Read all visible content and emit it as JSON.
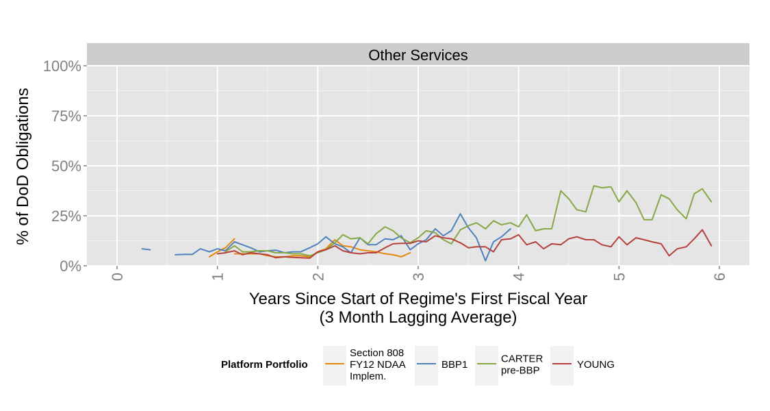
{
  "chart_data": {
    "type": "line",
    "panel_title": "Other Services",
    "xlabel": "Years Since Start of Regime's First Fiscal Year",
    "xlabel_sub": "(3 Month Lagging Average)",
    "ylabel": "% of DoD Obligations",
    "xlim": [
      -0.3,
      6.3
    ],
    "ylim": [
      0,
      1
    ],
    "x_ticks": [
      0,
      1,
      2,
      3,
      4,
      5,
      6
    ],
    "x_tick_labels": [
      "0",
      "1",
      "2",
      "3",
      "4",
      "5",
      "6"
    ],
    "y_ticks": [
      0,
      0.25,
      0.5,
      0.75,
      1.0
    ],
    "y_tick_labels": [
      "0%",
      "25%",
      "50%",
      "75%",
      "100%"
    ],
    "grid": true,
    "legend_placement": "bottom",
    "legend_title": "Platform Portfolio",
    "series": [
      {
        "name": "Section 808\nFY12 NDAA\nImplem.",
        "color": "#e5870e",
        "segments": [
          [
            [
              0.92,
              0.045
            ],
            [
              1.0,
              0.07
            ],
            [
              1.08,
              0.09
            ],
            [
              1.17,
              0.135
            ]
          ],
          [
            [
              1.17,
              0.06
            ],
            [
              1.25,
              0.06
            ],
            [
              1.33,
              0.06
            ],
            [
              1.42,
              0.06
            ],
            [
              1.5,
              0.05
            ],
            [
              1.58,
              0.045
            ],
            [
              1.67,
              0.045
            ],
            [
              1.75,
              0.05
            ],
            [
              1.83,
              0.05
            ],
            [
              1.92,
              0.045
            ],
            [
              2.0,
              0.07
            ],
            [
              2.08,
              0.085
            ],
            [
              2.17,
              0.13
            ],
            [
              2.25,
              0.1
            ],
            [
              2.33,
              0.095
            ],
            [
              2.42,
              0.08
            ],
            [
              2.5,
              0.075
            ],
            [
              2.58,
              0.07
            ],
            [
              2.67,
              0.06
            ],
            [
              2.75,
              0.055
            ],
            [
              2.83,
              0.045
            ],
            [
              2.92,
              0.065
            ]
          ]
        ]
      },
      {
        "name": "BBP1",
        "color": "#4e81bd",
        "segments": [
          [
            [
              0.25,
              0.085
            ],
            [
              0.33,
              0.08
            ]
          ],
          [
            [
              0.58,
              0.055
            ],
            [
              0.67,
              0.057
            ],
            [
              0.75,
              0.057
            ],
            [
              0.83,
              0.085
            ],
            [
              0.92,
              0.07
            ],
            [
              1.0,
              0.085
            ],
            [
              1.08,
              0.075
            ],
            [
              1.17,
              0.12
            ],
            [
              1.25,
              0.105
            ],
            [
              1.33,
              0.09
            ],
            [
              1.42,
              0.07
            ],
            [
              1.5,
              0.075
            ],
            [
              1.58,
              0.078
            ],
            [
              1.67,
              0.065
            ],
            [
              1.75,
              0.07
            ],
            [
              1.83,
              0.07
            ],
            [
              1.92,
              0.09
            ],
            [
              2.0,
              0.11
            ],
            [
              2.08,
              0.145
            ],
            [
              2.17,
              0.11
            ],
            [
              2.25,
              0.095
            ],
            [
              2.33,
              0.065
            ],
            [
              2.42,
              0.14
            ],
            [
              2.5,
              0.105
            ],
            [
              2.58,
              0.105
            ],
            [
              2.67,
              0.135
            ],
            [
              2.75,
              0.13
            ],
            [
              2.83,
              0.15
            ],
            [
              2.92,
              0.08
            ],
            [
              3.0,
              0.11
            ],
            [
              3.08,
              0.13
            ],
            [
              3.17,
              0.185
            ],
            [
              3.25,
              0.15
            ],
            [
              3.33,
              0.175
            ],
            [
              3.42,
              0.26
            ],
            [
              3.5,
              0.19
            ],
            [
              3.58,
              0.14
            ],
            [
              3.67,
              0.025
            ],
            [
              3.75,
              0.12
            ],
            [
              3.83,
              0.145
            ],
            [
              3.92,
              0.185
            ]
          ]
        ]
      },
      {
        "name": "CARTER\npre-BBP",
        "color": "#85a745",
        "segments": [
          [
            [
              1.08,
              0.07
            ],
            [
              1.17,
              0.1
            ],
            [
              1.25,
              0.07
            ],
            [
              1.33,
              0.07
            ],
            [
              1.42,
              0.075
            ],
            [
              1.5,
              0.075
            ],
            [
              1.58,
              0.065
            ],
            [
              1.67,
              0.065
            ],
            [
              1.75,
              0.06
            ],
            [
              1.83,
              0.06
            ],
            [
              1.92,
              0.05
            ],
            [
              2.0,
              0.065
            ],
            [
              2.08,
              0.08
            ],
            [
              2.17,
              0.115
            ],
            [
              2.25,
              0.155
            ],
            [
              2.33,
              0.135
            ],
            [
              2.42,
              0.14
            ],
            [
              2.5,
              0.11
            ],
            [
              2.58,
              0.16
            ],
            [
              2.67,
              0.195
            ],
            [
              2.75,
              0.175
            ],
            [
              2.83,
              0.14
            ],
            [
              2.92,
              0.115
            ],
            [
              3.0,
              0.14
            ],
            [
              3.08,
              0.175
            ],
            [
              3.17,
              0.165
            ],
            [
              3.25,
              0.13
            ],
            [
              3.33,
              0.11
            ],
            [
              3.42,
              0.18
            ],
            [
              3.5,
              0.2
            ],
            [
              3.58,
              0.215
            ],
            [
              3.67,
              0.185
            ],
            [
              3.75,
              0.225
            ],
            [
              3.83,
              0.205
            ],
            [
              3.92,
              0.215
            ],
            [
              4.0,
              0.195
            ],
            [
              4.08,
              0.255
            ],
            [
              4.17,
              0.175
            ],
            [
              4.25,
              0.185
            ],
            [
              4.33,
              0.185
            ],
            [
              4.42,
              0.375
            ],
            [
              4.5,
              0.335
            ],
            [
              4.58,
              0.28
            ],
            [
              4.67,
              0.27
            ],
            [
              4.75,
              0.4
            ],
            [
              4.83,
              0.39
            ],
            [
              4.92,
              0.395
            ],
            [
              5.0,
              0.32
            ],
            [
              5.08,
              0.375
            ],
            [
              5.17,
              0.315
            ],
            [
              5.25,
              0.23
            ],
            [
              5.33,
              0.23
            ],
            [
              5.42,
              0.355
            ],
            [
              5.5,
              0.335
            ],
            [
              5.58,
              0.28
            ],
            [
              5.67,
              0.235
            ],
            [
              5.75,
              0.36
            ],
            [
              5.83,
              0.385
            ],
            [
              5.92,
              0.32
            ]
          ]
        ]
      },
      {
        "name": "YOUNG",
        "color": "#b4413b",
        "segments": [
          [
            [
              1.0,
              0.06
            ],
            [
              1.08,
              0.065
            ],
            [
              1.17,
              0.075
            ],
            [
              1.25,
              0.055
            ],
            [
              1.33,
              0.065
            ],
            [
              1.42,
              0.06
            ],
            [
              1.5,
              0.055
            ],
            [
              1.58,
              0.04
            ],
            [
              1.67,
              0.045
            ],
            [
              1.75,
              0.042
            ],
            [
              1.83,
              0.04
            ],
            [
              1.92,
              0.038
            ],
            [
              2.0,
              0.07
            ],
            [
              2.08,
              0.08
            ],
            [
              2.17,
              0.1
            ],
            [
              2.25,
              0.075
            ],
            [
              2.33,
              0.065
            ],
            [
              2.42,
              0.06
            ],
            [
              2.5,
              0.065
            ],
            [
              2.58,
              0.065
            ],
            [
              2.67,
              0.09
            ],
            [
              2.75,
              0.11
            ],
            [
              2.83,
              0.112
            ],
            [
              2.92,
              0.112
            ],
            [
              3.0,
              0.125
            ],
            [
              3.08,
              0.12
            ],
            [
              3.17,
              0.15
            ],
            [
              3.25,
              0.14
            ],
            [
              3.33,
              0.135
            ],
            [
              3.42,
              0.115
            ],
            [
              3.5,
              0.09
            ],
            [
              3.58,
              0.095
            ],
            [
              3.67,
              0.095
            ],
            [
              3.75,
              0.07
            ],
            [
              3.83,
              0.13
            ],
            [
              3.92,
              0.135
            ],
            [
              4.0,
              0.155
            ],
            [
              4.08,
              0.105
            ],
            [
              4.17,
              0.12
            ],
            [
              4.25,
              0.085
            ],
            [
              4.33,
              0.11
            ],
            [
              4.42,
              0.105
            ],
            [
              4.5,
              0.135
            ],
            [
              4.58,
              0.145
            ],
            [
              4.67,
              0.13
            ],
            [
              4.75,
              0.13
            ],
            [
              4.83,
              0.105
            ],
            [
              4.92,
              0.095
            ],
            [
              5.0,
              0.145
            ],
            [
              5.08,
              0.105
            ],
            [
              5.17,
              0.14
            ],
            [
              5.25,
              0.13
            ],
            [
              5.33,
              0.12
            ],
            [
              5.42,
              0.11
            ],
            [
              5.5,
              0.05
            ],
            [
              5.58,
              0.085
            ],
            [
              5.67,
              0.095
            ],
            [
              5.75,
              0.135
            ],
            [
              5.83,
              0.18
            ],
            [
              5.92,
              0.1
            ]
          ]
        ]
      }
    ]
  }
}
